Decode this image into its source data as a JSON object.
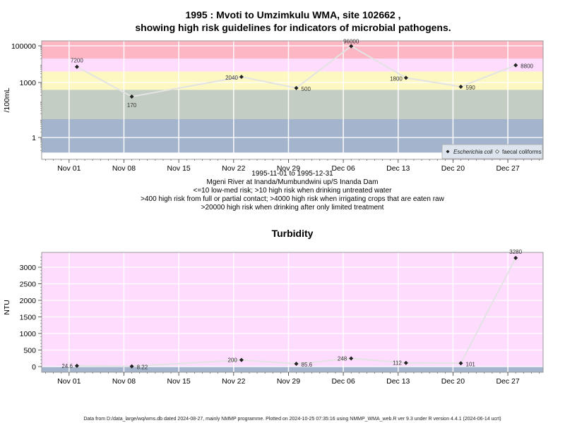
{
  "chart_data": [
    {
      "type": "line",
      "title_line1": "1995 : Mvoti to Umzimkulu WMA, site 102662 ,",
      "title_line2": "showing high risk guidelines for indicators of microbial pathogens.",
      "ylabel": "/100mL",
      "yscale": "log",
      "y_ticks": [
        "1",
        "1000",
        "100000"
      ],
      "x_ticks": [
        "Nov 01",
        "Nov 08",
        "Nov 15",
        "Nov 22",
        "Nov 29",
        "Dec 06",
        "Dec 13",
        "Dec 20",
        "Dec 27"
      ],
      "date_range": "1995-11-01 to 1995-12-31",
      "station": "Mgeni River at Inanda/Mumbundwini up/S Inanda Dam",
      "notes": [
        "<=10 low-med risk; >10 high risk when drinking untreated water",
        ">400 high risk from full or partial contact; >4000 high risk when irrigating crops that are eaten raw",
        ">20000 high risk when drinking after only limited treatment"
      ],
      "bands": [
        {
          "from": 0.15,
          "to": 10,
          "color": "#a4b4cc"
        },
        {
          "from": 10,
          "to": 400,
          "color": "#c3cdc3"
        },
        {
          "from": 400,
          "to": 4000,
          "color": "#fdf7c2"
        },
        {
          "from": 4000,
          "to": 20000,
          "color": "#fddcfd"
        },
        {
          "from": 20000,
          "to": 500000,
          "color": "#fdb6c3"
        }
      ],
      "series": [
        {
          "name": "Escherichia coli",
          "x": [
            "1995-11-02",
            "1995-11-09",
            "1995-11-23",
            "1995-11-30",
            "1995-12-07",
            "1995-12-14",
            "1995-12-21",
            "1995-12-28"
          ],
          "values": [
            7200,
            170,
            2040,
            500,
            96000,
            1800,
            590,
            8800
          ],
          "labels": [
            "7200",
            "170",
            "2040",
            "500",
            "96000",
            "1800",
            "590",
            "8800"
          ]
        }
      ],
      "legend": {
        "items": [
          "Escherichia coli",
          "faecal coliforms"
        ],
        "placement": "bottom-right"
      }
    },
    {
      "type": "line",
      "title": "Turbidity",
      "ylabel": "NTU",
      "ylim": [
        -150,
        3400
      ],
      "y_ticks": [
        "0",
        "500",
        "1000",
        "1500",
        "2000",
        "2500",
        "3000"
      ],
      "x_ticks": [
        "Nov 01",
        "Nov 08",
        "Nov 15",
        "Nov 22",
        "Nov 29",
        "Dec 06",
        "Dec 13",
        "Dec 20",
        "Dec 27"
      ],
      "series": [
        {
          "x": [
            "1995-11-02",
            "1995-11-09",
            "1995-11-23",
            "1995-11-30",
            "1995-12-07",
            "1995-12-14",
            "1995-12-21",
            "1995-12-28"
          ],
          "values": [
            24.6,
            8.22,
            200,
            85.6,
            248,
            112,
            101,
            3280
          ],
          "labels": [
            "24.6",
            "8.22",
            "200",
            "85.6",
            "248",
            "112",
            "101",
            "3280"
          ]
        }
      ]
    }
  ],
  "footer": "Data from D:/data_large/wq/wms.db dated 2024-08-27, mainly NMMP programme. Plotted on 2024-10-25 07:35:16 using NMMP_WMA_web.R ver 9.3 under R version 4.4.1 (2024-06-14 ucrt)"
}
